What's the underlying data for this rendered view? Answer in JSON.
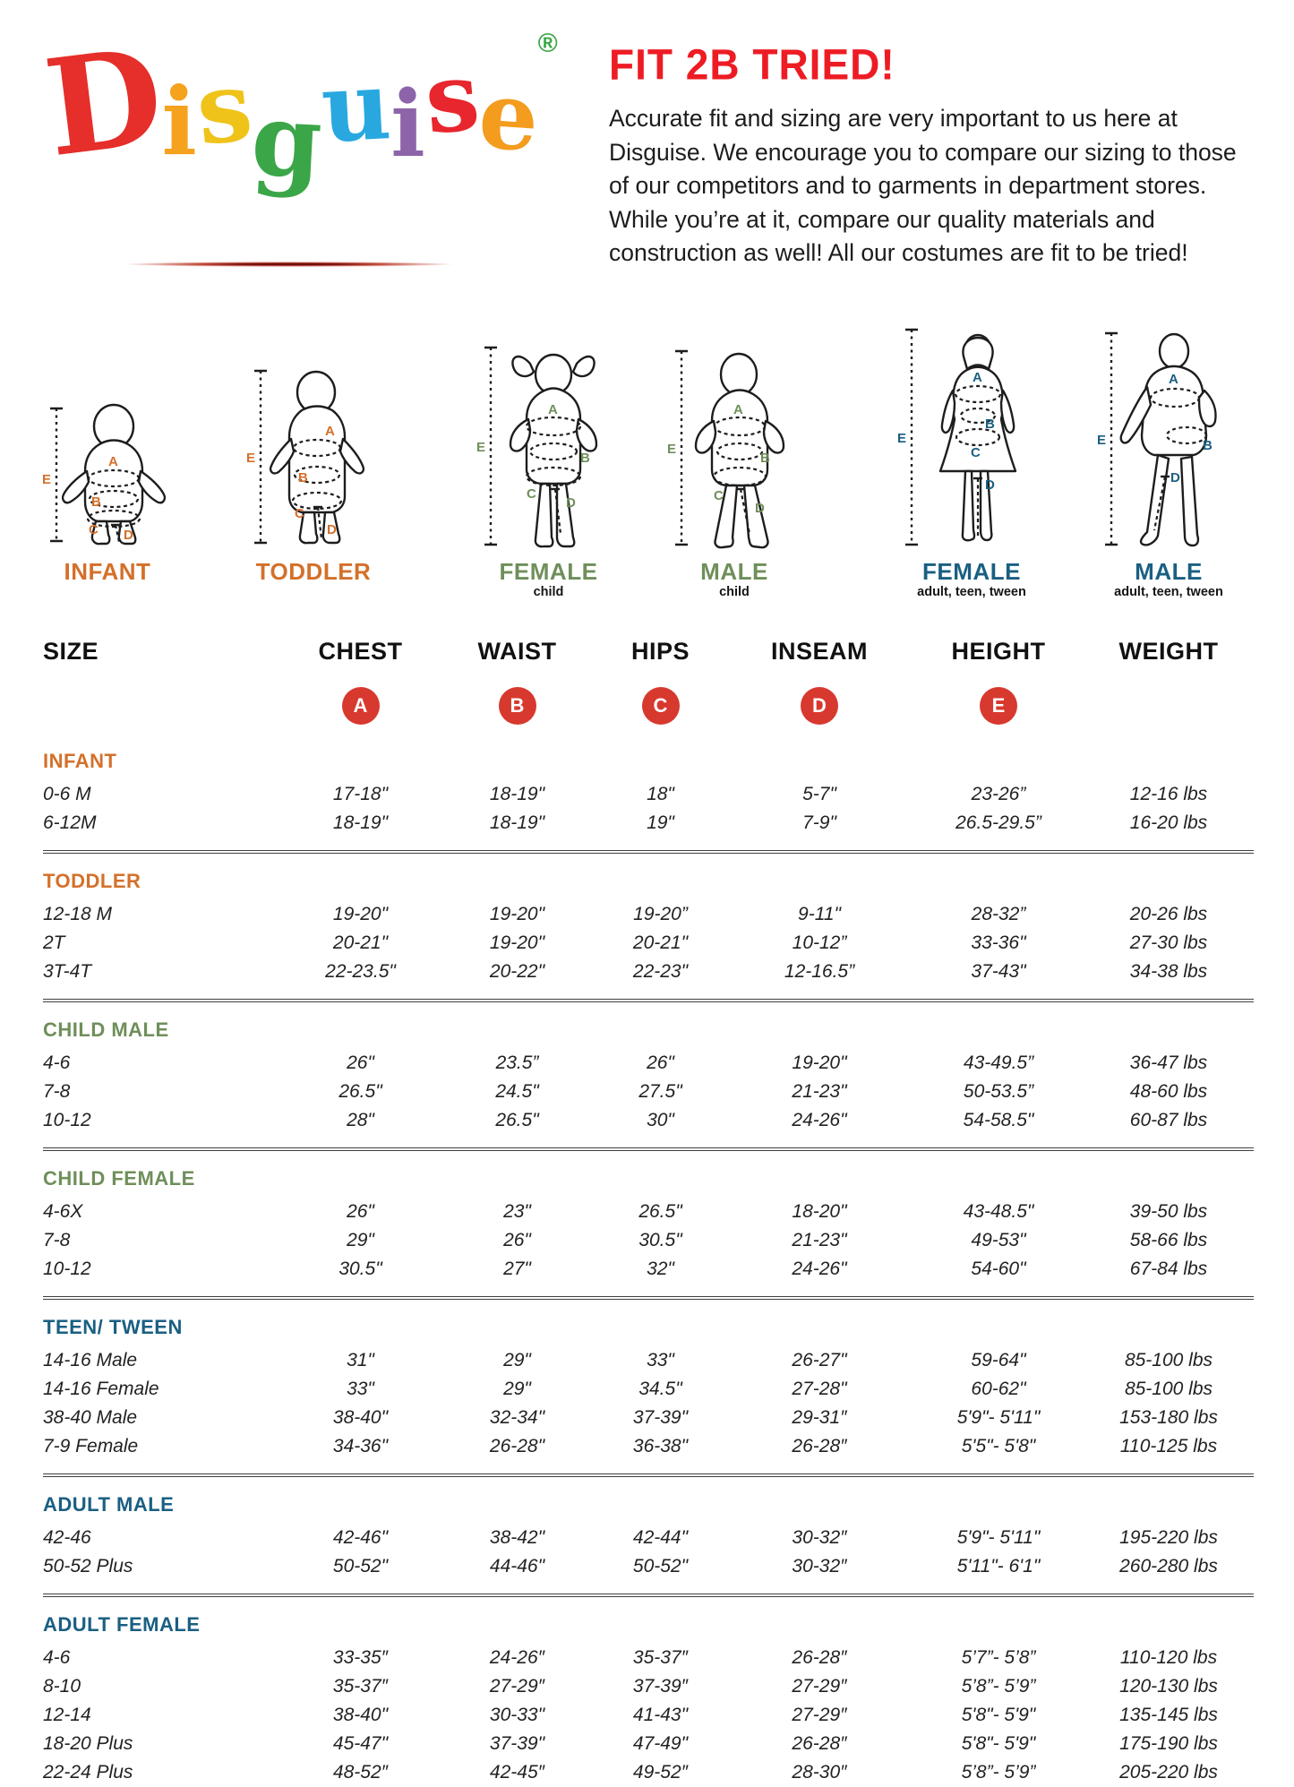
{
  "colors": {
    "orange": "#d4702a",
    "green": "#6f8f5a",
    "blue": "#1a5f82",
    "badge": "#d7392f",
    "titlered": "#ed1c24"
  },
  "logo": {
    "letters": [
      {
        "char": "D",
        "color": "#e62e2a"
      },
      {
        "char": "i",
        "color": "#f5a21e"
      },
      {
        "char": "s",
        "color": "#efc31a"
      },
      {
        "char": "g",
        "color": "#3ba648"
      },
      {
        "char": "u",
        "color": "#29a8e0"
      },
      {
        "char": "i",
        "color": "#8d64aa"
      },
      {
        "char": "s",
        "color": "#e8262d"
      },
      {
        "char": "e",
        "color": "#f49c1e"
      }
    ],
    "registered_mark": "®",
    "registered_mark_color": "#3ba648"
  },
  "intro": {
    "title": "FIT 2B TRIED!",
    "paragraph": "Accurate fit and sizing are very important to us here at Disguise. We encourage you to compare our sizing to those of our competitors and to garments in department stores. While you’re at it, compare our quality materials and construction as well! All our costumes are fit to be tried!"
  },
  "measure_letters": [
    "A",
    "B",
    "C",
    "D",
    "E"
  ],
  "figures": [
    {
      "id": "infant",
      "label": "INFANT",
      "sublabel": "",
      "color": "#d4702a"
    },
    {
      "id": "toddler",
      "label": "TODDLER",
      "sublabel": "",
      "color": "#d4702a"
    },
    {
      "id": "female-child",
      "label": "FEMALE",
      "sublabel": "child",
      "color": "#6f8f5a"
    },
    {
      "id": "male-child",
      "label": "MALE",
      "sublabel": "child",
      "color": "#6f8f5a"
    },
    {
      "id": "female-adult",
      "label": "FEMALE",
      "sublabel": "adult, teen, tween",
      "color": "#1a5f82"
    },
    {
      "id": "male-adult",
      "label": "MALE",
      "sublabel": "adult, teen, tween",
      "color": "#1a5f82"
    }
  ],
  "table": {
    "columns": [
      "SIZE",
      "CHEST",
      "WAIST",
      "HIPS",
      "INSEAM",
      "HEIGHT",
      "WEIGHT"
    ],
    "badges": [
      "A",
      "B",
      "C",
      "D",
      "E"
    ],
    "sections": [
      {
        "heading": "INFANT",
        "color": "#d4702a",
        "rows": [
          {
            "size": "0-6 M",
            "chest": "17-18\"",
            "waist": "18-19\"",
            "hips": "18\"",
            "inseam": "5-7\"",
            "height": "23-26”",
            "weight": "12-16 lbs"
          },
          {
            "size": "6-12M",
            "chest": "18-19\"",
            "waist": "18-19\"",
            "hips": "19\"",
            "inseam": "7-9\"",
            "height": "26.5-29.5”",
            "weight": "16-20 lbs"
          }
        ]
      },
      {
        "heading": "TODDLER",
        "color": "#d4702a",
        "rows": [
          {
            "size": "12-18 M",
            "chest": "19-20\"",
            "waist": "19-20\"",
            "hips": "19-20”",
            "inseam": "9-11\"",
            "height": "28-32”",
            "weight": "20-26 lbs"
          },
          {
            "size": "2T",
            "chest": "20-21\"",
            "waist": "19-20\"",
            "hips": "20-21\"",
            "inseam": "10-12”",
            "height": "33-36\"",
            "weight": "27-30 lbs"
          },
          {
            "size": "3T-4T",
            "chest": "22-23.5\"",
            "waist": "20-22\"",
            "hips": "22-23\"",
            "inseam": "12-16.5”",
            "height": "37-43\"",
            "weight": "34-38 lbs"
          }
        ]
      },
      {
        "heading": "CHILD MALE",
        "color": "#6f8f5a",
        "rows": [
          {
            "size": "4-6",
            "chest": "26\"",
            "waist": "23.5”",
            "hips": "26\"",
            "inseam": "19-20\"",
            "height": "43-49.5”",
            "weight": "36-47 lbs"
          },
          {
            "size": "7-8",
            "chest": "26.5\"",
            "waist": "24.5\"",
            "hips": "27.5\"",
            "inseam": "21-23\"",
            "height": "50-53.5”",
            "weight": "48-60 lbs"
          },
          {
            "size": "10-12",
            "chest": "28\"",
            "waist": "26.5\"",
            "hips": "30\"",
            "inseam": "24-26\"",
            "height": "54-58.5\"",
            "weight": "60-87 lbs"
          }
        ]
      },
      {
        "heading": "CHILD FEMALE",
        "color": "#6f8f5a",
        "rows": [
          {
            "size": "4-6X",
            "chest": "26\"",
            "waist": "23\"",
            "hips": "26.5\"",
            "inseam": "18-20\"",
            "height": "43-48.5\"",
            "weight": "39-50 lbs"
          },
          {
            "size": "7-8",
            "chest": "29\"",
            "waist": "26\"",
            "hips": "30.5\"",
            "inseam": "21-23\"",
            "height": "49-53\"",
            "weight": "58-66 lbs"
          },
          {
            "size": "10-12",
            "chest": "30.5\"",
            "waist": "27\"",
            "hips": "32\"",
            "inseam": "24-26\"",
            "height": "54-60\"",
            "weight": "67-84 lbs"
          }
        ]
      },
      {
        "heading": "TEEN/ TWEEN",
        "color": "#1a5f82",
        "rows": [
          {
            "size": "14-16 Male",
            "chest": "31\"",
            "waist": "29\"",
            "hips": "33\"",
            "inseam": "26-27\"",
            "height": "59-64\"",
            "weight": "85-100 lbs"
          },
          {
            "size": "14-16 Female",
            "chest": "33\"",
            "waist": "29\"",
            "hips": "34.5\"",
            "inseam": "27-28\"",
            "height": "60-62\"",
            "weight": "85-100 lbs"
          },
          {
            "size": "38-40 Male",
            "chest": "38-40\"",
            "waist": "32-34\"",
            "hips": "37-39\"",
            "inseam": "29-31″",
            "height": "5'9\"- 5'11\"",
            "weight": "153-180 lbs"
          },
          {
            "size": "7-9 Female",
            "chest": "34-36\"",
            "waist": "26-28\"",
            "hips": "36-38\"",
            "inseam": "26-28″",
            "height": "5'5\"- 5'8\"",
            "weight": "110-125 lbs"
          }
        ]
      },
      {
        "heading": "ADULT MALE",
        "color": "#1a5f82",
        "rows": [
          {
            "size": "42-46",
            "chest": "42-46\"",
            "waist": "38-42\"",
            "hips": "42-44\"",
            "inseam": "30-32″",
            "height": "5'9\"- 5'11\"",
            "weight": "195-220 lbs"
          },
          {
            "size": "50-52 Plus",
            "chest": "50-52\"",
            "waist": "44-46\"",
            "hips": "50-52\"",
            "inseam": "30-32″",
            "height": "5'11\"- 6'1\"",
            "weight": "260-280 lbs"
          }
        ]
      },
      {
        "heading": "ADULT FEMALE",
        "color": "#1a5f82",
        "rows": [
          {
            "size": "4-6",
            "chest": "33-35″",
            "waist": "24-26″",
            "hips": "35-37″",
            "inseam": "26-28″",
            "height": "5’7”- 5’8”",
            "weight": "110-120 lbs"
          },
          {
            "size": "8-10",
            "chest": "35-37″",
            "waist": "27-29″",
            "hips": "37-39″",
            "inseam": "27-29″",
            "height": "5’8”- 5’9”",
            "weight": "120-130 lbs"
          },
          {
            "size": "12-14",
            "chest": "38-40\"",
            "waist": "30-33\"",
            "hips": "41-43\"",
            "inseam": "27-29″",
            "height": "5'8\"- 5'9\"",
            "weight": "135-145 lbs"
          },
          {
            "size": "18-20 Plus",
            "chest": "45-47\"",
            "waist": "37-39\"",
            "hips": "47-49\"",
            "inseam": "26-28″",
            "height": "5'8\"- 5'9\"",
            "weight": "175-190 lbs"
          },
          {
            "size": "22-24 Plus",
            "chest": "48-52″",
            "waist": "42-45″",
            "hips": "49-52″",
            "inseam": "28-30″",
            "height": "5’8”- 5’9”",
            "weight": "205-220 lbs"
          }
        ]
      }
    ]
  }
}
